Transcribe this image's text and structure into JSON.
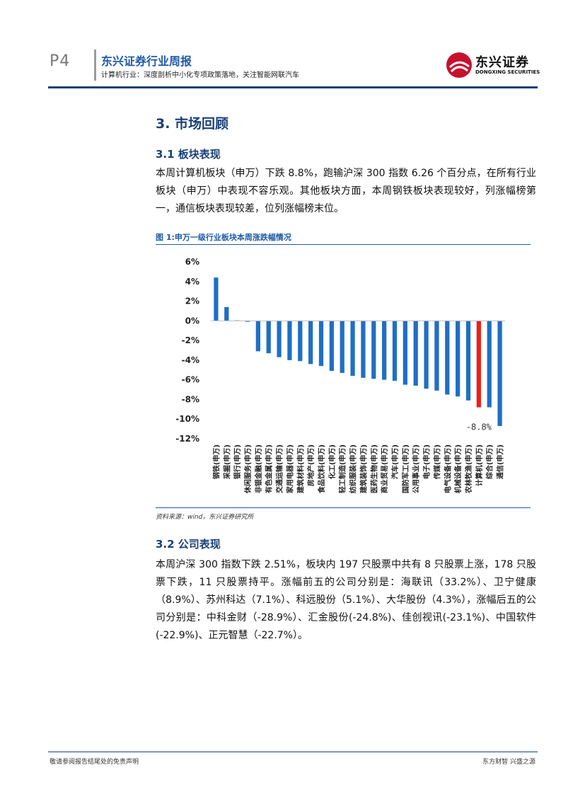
{
  "header": {
    "page_number": "P4",
    "report_title": "东兴证券行业周报",
    "report_subtitle": "计算机行业：深度剖析中小化专项政策落地，关注智能网联汽车",
    "logo_cn": "东兴证券",
    "logo_en": "DONGXING SECURITIES",
    "brand_color": "#c8102e",
    "accent_color": "#1c3f7a"
  },
  "section": {
    "heading": "3. 市场回顾",
    "sub1": {
      "heading": "3.1 板块表现",
      "paragraph": "本周计算机板块（申万）下跌 8.8%，跑输沪深 300 指数 6.26 个百分点，在所有行业板块（申万）中表现不容乐观。其他板块方面，本周钢铁板块表现较好，列涨幅榜第一，通信板块表现较差，位列涨幅榜末位。"
    },
    "sub2": {
      "heading": "3.2 公司表现",
      "paragraph": "本周沪深 300 指数下跌 2.51%，板块内 197 只股票中共有 8 只股票上涨，178 只股票下跌，11 只股票持平。涨幅前五的公司分别是：海联讯（33.2%）、卫宁健康（8.9%）、苏州科达（7.1%）、科远股份（5.1%）、大华股份（4.3%），涨幅后五的公司分别是：中科金财（-28.9%）、汇金股份(-24.8%)、佳创视讯(-23.1%)、中国软件(-22.9%)、正元智慧（-22.7%）。"
    }
  },
  "figure": {
    "caption": "图 1:申万一级行业板块本周涨跌幅情况",
    "source": "资料来源：wind，东兴证券研究所"
  },
  "chart_data": {
    "type": "bar",
    "categories": [
      "钢铁(申万)",
      "采掘(申万)",
      "银行(申万)",
      "休闲服务(申万)",
      "非银金融(申万)",
      "有色金属(申万)",
      "交通运输(申万)",
      "家用电器(申万)",
      "建筑材料(申万)",
      "房地产(申万)",
      "食品饮料(申万)",
      "化工(申万)",
      "轻工制造(申万)",
      "纺织服装(申万)",
      "建筑装饰(申万)",
      "医药生物(申万)",
      "商业贸易(申万)",
      "汽车(申万)",
      "国防军工(申万)",
      "公用事业(申万)",
      "电子(申万)",
      "传媒(申万)",
      "电气设备(申万)",
      "机械设备(申万)",
      "农林牧渔(申万)",
      "计算机(申万)",
      "综合(申万)",
      "通信(申万)"
    ],
    "values": [
      4.4,
      1.4,
      0.05,
      -0.1,
      -3.1,
      -3.3,
      -3.7,
      -4.0,
      -4.1,
      -4.4,
      -4.6,
      -5.1,
      -5.3,
      -5.6,
      -5.8,
      -5.9,
      -6.0,
      -6.1,
      -6.5,
      -6.6,
      -6.9,
      -7.1,
      -7.5,
      -7.7,
      -8.1,
      -8.8,
      -8.8,
      -10.7
    ],
    "highlight_index": 25,
    "highlight_label": "-8.8%",
    "bar_color": "#1f6fc5",
    "highlight_color": "#e8201a",
    "ylim": [
      -12,
      6
    ],
    "yticks": [
      6,
      4,
      2,
      0,
      -2,
      -4,
      -6,
      -8,
      -10,
      -12
    ],
    "ytick_labels": [
      "6%",
      "4%",
      "2%",
      "0%",
      "-2%",
      "-4%",
      "-6%",
      "-8%",
      "-10%",
      "-12%"
    ],
    "grid": false,
    "legend": "none"
  },
  "footer": {
    "left": "敬请参阅报告结尾处的免责声明",
    "right": "东方财智 兴盛之源"
  }
}
